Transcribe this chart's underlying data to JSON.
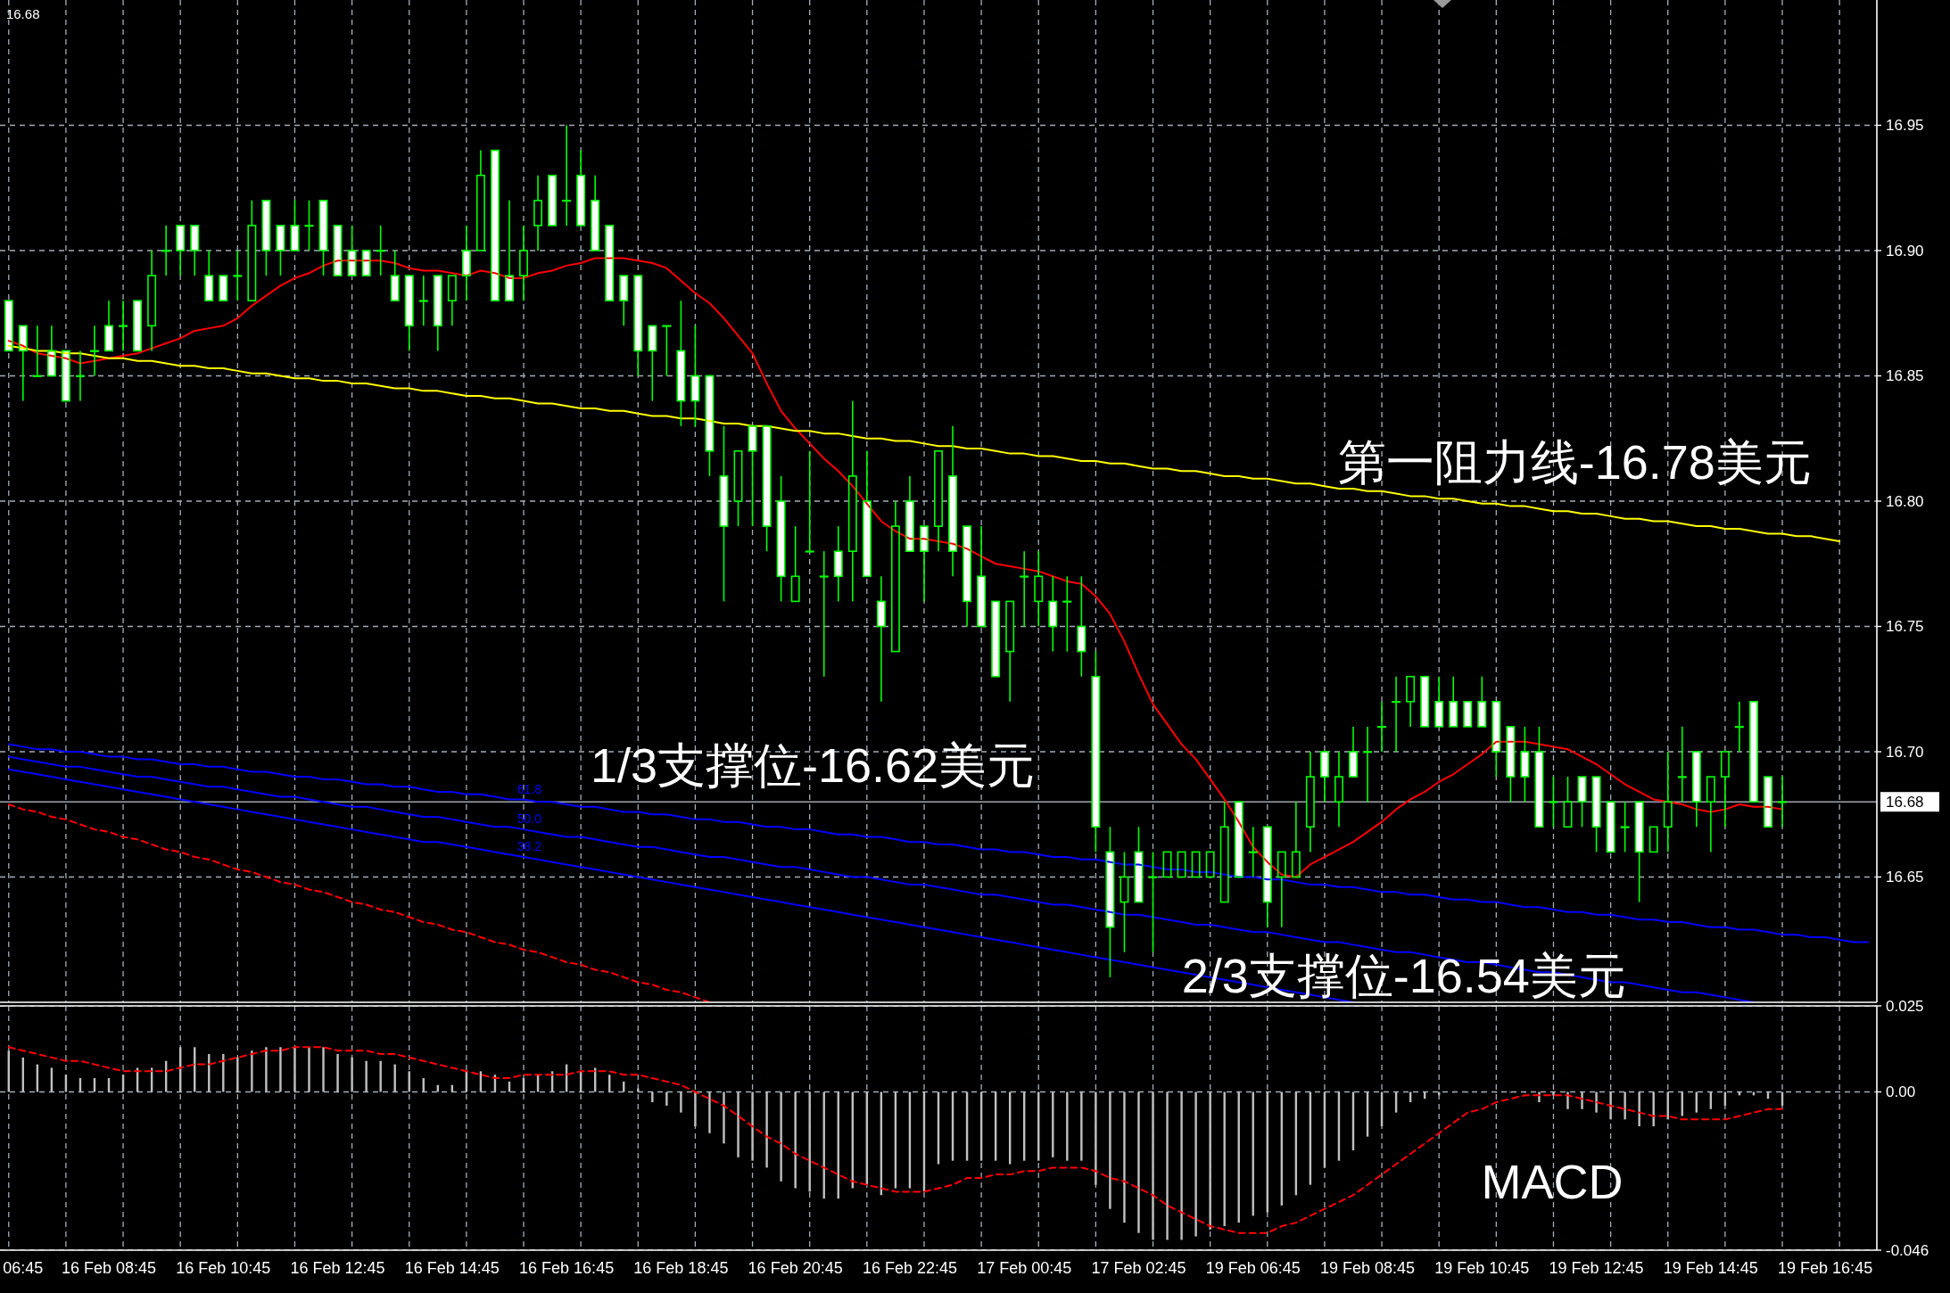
{
  "chart_data": [
    {
      "type": "candlestick",
      "annotations": [
        "16.68",
        "第一阻力线-16.78美元",
        "1/3支撑位-16.62美元",
        "2/3支撑位-16.54美元"
      ],
      "categories": [
        null,
        null,
        null,
        null,
        null,
        null,
        null,
        null,
        null,
        null,
        null,
        null,
        null,
        null,
        null,
        null,
        null,
        null,
        null,
        null,
        null,
        null,
        null,
        null,
        null,
        null,
        null,
        null,
        null,
        null,
        null,
        null,
        null,
        null,
        null,
        null,
        null,
        null,
        null,
        null,
        null,
        null,
        null,
        null,
        null,
        null,
        null,
        null,
        null,
        null,
        null,
        null,
        null,
        null,
        null,
        null,
        null,
        null,
        null,
        null,
        null,
        null,
        null,
        null,
        null,
        null,
        null,
        null,
        null,
        null,
        null,
        null,
        null,
        null,
        null,
        null,
        null,
        null,
        null,
        null,
        null,
        null,
        null,
        null,
        null,
        null,
        null,
        null,
        null,
        null,
        null,
        null,
        null,
        null,
        null,
        null,
        null,
        null,
        null,
        null,
        null,
        null,
        null,
        null,
        null,
        null,
        null,
        null,
        null,
        null,
        null,
        null,
        null,
        null,
        null,
        null,
        null,
        null,
        null,
        null,
        null,
        null,
        null,
        null,
        null,
        null,
        null,
        null,
        null,
        null,
        null
      ],
      "ohlc": [
        [
          16.88,
          16.88,
          16.86,
          16.86
        ],
        [
          16.87,
          16.87,
          16.84,
          16.86
        ],
        [
          16.85,
          16.87,
          16.85,
          16.85
        ],
        [
          16.86,
          16.87,
          16.85,
          16.85
        ],
        [
          16.86,
          16.86,
          16.84,
          16.84
        ],
        [
          16.85,
          16.86,
          16.84,
          16.85
        ],
        [
          16.86,
          16.87,
          16.85,
          16.86
        ],
        [
          16.87,
          16.88,
          16.86,
          16.86
        ],
        [
          16.87,
          16.88,
          16.86,
          16.87
        ],
        [
          16.88,
          16.88,
          16.86,
          16.86
        ],
        [
          16.87,
          16.9,
          16.86,
          16.89
        ],
        [
          16.9,
          16.91,
          16.89,
          16.9
        ],
        [
          16.91,
          16.91,
          16.89,
          16.9
        ],
        [
          16.91,
          16.91,
          16.89,
          16.9
        ],
        [
          16.89,
          16.9,
          16.88,
          16.88
        ],
        [
          16.89,
          16.89,
          16.88,
          16.88
        ],
        [
          16.89,
          16.9,
          16.88,
          16.89
        ],
        [
          16.88,
          16.92,
          16.88,
          16.91
        ],
        [
          16.92,
          16.92,
          16.89,
          16.9
        ],
        [
          16.91,
          16.91,
          16.89,
          16.9
        ],
        [
          16.91,
          16.92,
          16.9,
          16.9
        ],
        [
          16.91,
          16.92,
          16.9,
          16.91
        ],
        [
          16.92,
          16.92,
          16.89,
          16.9
        ],
        [
          16.91,
          16.91,
          16.89,
          16.89
        ],
        [
          16.9,
          16.91,
          16.89,
          16.89
        ],
        [
          16.9,
          16.9,
          16.89,
          16.89
        ],
        [
          16.9,
          16.91,
          16.89,
          16.9
        ],
        [
          16.89,
          16.9,
          16.88,
          16.88
        ],
        [
          16.89,
          16.89,
          16.86,
          16.87
        ],
        [
          16.88,
          16.89,
          16.87,
          16.88
        ],
        [
          16.89,
          16.89,
          16.86,
          16.87
        ],
        [
          16.88,
          16.89,
          16.87,
          16.89
        ],
        [
          16.9,
          16.91,
          16.88,
          16.89
        ],
        [
          16.9,
          16.94,
          16.9,
          16.93
        ],
        [
          16.94,
          16.94,
          16.88,
          16.88
        ],
        [
          16.89,
          16.92,
          16.88,
          16.88
        ],
        [
          16.89,
          16.91,
          16.88,
          16.9
        ],
        [
          16.91,
          16.93,
          16.9,
          16.92
        ],
        [
          16.93,
          16.93,
          16.91,
          16.91
        ],
        [
          16.92,
          16.95,
          16.91,
          16.92
        ],
        [
          16.93,
          16.94,
          16.91,
          16.91
        ],
        [
          16.92,
          16.93,
          16.9,
          16.9
        ],
        [
          16.91,
          16.91,
          16.88,
          16.88
        ],
        [
          16.89,
          16.89,
          16.87,
          16.88
        ],
        [
          16.89,
          16.89,
          16.85,
          16.86
        ],
        [
          16.87,
          16.87,
          16.84,
          16.86
        ],
        [
          16.87,
          16.87,
          16.85,
          16.87
        ],
        [
          16.86,
          16.88,
          16.83,
          16.84
        ],
        [
          16.85,
          16.87,
          16.83,
          16.84
        ],
        [
          16.85,
          16.85,
          16.81,
          16.82
        ],
        [
          16.81,
          16.83,
          16.76,
          16.79
        ],
        [
          16.8,
          16.82,
          16.79,
          16.82
        ],
        [
          16.83,
          16.83,
          16.79,
          16.82
        ],
        [
          16.83,
          16.83,
          16.78,
          16.79
        ],
        [
          16.8,
          16.81,
          16.76,
          16.77
        ],
        [
          16.76,
          16.79,
          16.76,
          16.77
        ],
        [
          16.78,
          16.82,
          16.78,
          16.78
        ],
        [
          16.77,
          16.78,
          16.73,
          16.77
        ],
        [
          16.78,
          16.79,
          16.76,
          16.77
        ],
        [
          16.78,
          16.84,
          16.76,
          16.81
        ],
        [
          16.8,
          16.82,
          16.77,
          16.77
        ],
        [
          16.76,
          16.77,
          16.72,
          16.75
        ],
        [
          16.74,
          16.8,
          16.74,
          16.79
        ],
        [
          16.8,
          16.81,
          16.78,
          16.78
        ],
        [
          16.79,
          16.79,
          16.76,
          16.78
        ],
        [
          16.79,
          16.82,
          16.78,
          16.82
        ],
        [
          16.81,
          16.83,
          16.77,
          16.78
        ],
        [
          16.79,
          16.79,
          16.75,
          16.76
        ],
        [
          16.77,
          16.79,
          16.75,
          16.75
        ],
        [
          16.76,
          16.76,
          16.73,
          16.73
        ],
        [
          16.74,
          16.76,
          16.72,
          16.76
        ],
        [
          16.77,
          16.78,
          16.75,
          16.77
        ],
        [
          16.76,
          16.78,
          16.75,
          16.77
        ],
        [
          16.76,
          16.77,
          16.74,
          16.75
        ],
        [
          16.76,
          16.77,
          16.74,
          16.76
        ],
        [
          16.75,
          16.77,
          16.73,
          16.74
        ],
        [
          16.73,
          16.74,
          16.66,
          16.67
        ],
        [
          16.66,
          16.67,
          16.61,
          16.63
        ],
        [
          16.64,
          16.66,
          16.62,
          16.65
        ],
        [
          16.66,
          16.67,
          16.64,
          16.64
        ],
        [
          16.65,
          16.66,
          16.62,
          16.65
        ],
        [
          16.65,
          16.66,
          16.65,
          16.66
        ],
        [
          16.65,
          16.66,
          16.65,
          16.66
        ],
        [
          16.65,
          16.66,
          16.65,
          16.66
        ],
        [
          16.65,
          16.66,
          16.65,
          16.66
        ],
        [
          16.64,
          16.68,
          16.64,
          16.67
        ],
        [
          16.68,
          16.68,
          16.65,
          16.65
        ],
        [
          16.66,
          16.67,
          16.65,
          16.66
        ],
        [
          16.67,
          16.67,
          16.63,
          16.64
        ],
        [
          16.65,
          16.66,
          16.63,
          16.66
        ],
        [
          16.65,
          16.68,
          16.65,
          16.66
        ],
        [
          16.67,
          16.7,
          16.66,
          16.69
        ],
        [
          16.7,
          16.7,
          16.68,
          16.69
        ],
        [
          16.68,
          16.7,
          16.67,
          16.69
        ],
        [
          16.7,
          16.71,
          16.69,
          16.69
        ],
        [
          16.7,
          16.71,
          16.68,
          16.7
        ],
        [
          16.71,
          16.72,
          16.7,
          16.71
        ],
        [
          16.72,
          16.73,
          16.7,
          16.72
        ],
        [
          16.72,
          16.73,
          16.71,
          16.73
        ],
        [
          16.73,
          16.73,
          16.71,
          16.71
        ],
        [
          16.72,
          16.73,
          16.71,
          16.71
        ],
        [
          16.72,
          16.73,
          16.71,
          16.71
        ],
        [
          16.72,
          16.72,
          16.71,
          16.71
        ],
        [
          16.72,
          16.73,
          16.71,
          16.71
        ],
        [
          16.72,
          16.72,
          16.69,
          16.7
        ],
        [
          16.71,
          16.71,
          16.68,
          16.69
        ],
        [
          16.7,
          16.71,
          16.68,
          16.69
        ],
        [
          16.7,
          16.71,
          16.67,
          16.67
        ],
        [
          16.68,
          16.69,
          16.67,
          16.68
        ],
        [
          16.67,
          16.69,
          16.67,
          16.68
        ],
        [
          16.69,
          16.69,
          16.67,
          16.68
        ],
        [
          16.69,
          16.69,
          16.66,
          16.67
        ],
        [
          16.68,
          16.68,
          16.66,
          16.66
        ],
        [
          16.67,
          16.68,
          16.66,
          16.67
        ],
        [
          16.68,
          16.68,
          16.64,
          16.66
        ],
        [
          16.66,
          16.67,
          16.66,
          16.67
        ],
        [
          16.67,
          16.7,
          16.66,
          16.68
        ],
        [
          16.69,
          16.71,
          16.68,
          16.69
        ],
        [
          16.7,
          16.7,
          16.67,
          16.68
        ],
        [
          16.68,
          16.69,
          16.66,
          16.69
        ],
        [
          16.69,
          16.7,
          16.67,
          16.7
        ],
        [
          16.71,
          16.72,
          16.7,
          16.71
        ],
        [
          16.72,
          16.72,
          16.68,
          16.68
        ],
        [
          16.69,
          16.69,
          16.67,
          16.67
        ],
        [
          16.68,
          16.69,
          16.67,
          16.68
        ],
        null,
        null,
        null,
        null,
        null,
        null
      ],
      "color": "#00ff00",
      "colors": [
        "#ffffff",
        "#ffffff",
        "#000000",
        "#ffffff",
        "#ffffff",
        "#000000",
        "#000000",
        "#ffffff",
        "#000000",
        "#ffffff",
        "#000000",
        "#000000",
        "#ffffff",
        "#ffffff",
        "#ffffff",
        "#ffffff",
        "#000000",
        "#000000",
        "#ffffff",
        "#ffffff",
        "#ffffff",
        "#000000",
        "#ffffff",
        "#ffffff",
        "#ffffff",
        "#ffffff",
        "#000000",
        "#ffffff",
        "#ffffff",
        "#000000",
        "#ffffff",
        "#000000",
        "#ffffff",
        "#000000",
        "#ffffff",
        "#ffffff",
        "#000000",
        "#000000",
        "#ffffff",
        "#000000",
        "#ffffff",
        "#ffffff",
        "#ffffff",
        "#ffffff",
        "#ffffff",
        "#ffffff",
        "#000000",
        "#ffffff",
        "#ffffff",
        "#ffffff",
        "#ffffff",
        "#000000",
        "#ffffff",
        "#ffffff",
        "#ffffff",
        "#000000",
        "#000000",
        "#000000",
        "#ffffff",
        "#000000",
        "#ffffff",
        "#ffffff",
        "#000000",
        "#ffffff",
        "#ffffff",
        "#000000",
        "#ffffff",
        "#ffffff",
        "#ffffff",
        "#ffffff",
        "#000000",
        "#000000",
        "#000000",
        "#ffffff",
        "#000000",
        "#ffffff",
        "#ffffff",
        "#ffffff",
        "#000000",
        "#ffffff",
        "#000000",
        "#000000",
        "#000000",
        "#000000",
        "#000000",
        "#000000",
        "#ffffff",
        "#000000",
        "#ffffff",
        "#000000",
        "#000000",
        "#000000",
        "#ffffff",
        "#000000",
        "#ffffff",
        "#000000",
        "#000000",
        "#000000",
        "#000000",
        "#ffffff",
        "#ffffff",
        "#ffffff",
        "#ffffff",
        "#ffffff",
        "#ffffff",
        "#ffffff",
        "#ffffff",
        "#ffffff",
        "#000000",
        "#000000",
        "#ffffff",
        "#ffffff",
        "#ffffff",
        "#000000",
        "#ffffff",
        "#000000",
        "#000000",
        "#000000",
        "#ffffff",
        "#000000",
        "#000000",
        "#000000",
        "#ffffff",
        "#ffffff",
        "#000000",
        null,
        null,
        null,
        null,
        null,
        null
      ],
      "series": [
        {
          "type": "line",
          "color": "#ff0000",
          "values": [
            16.864,
            16.862,
            16.859,
            16.858,
            16.857,
            16.855,
            16.856,
            16.857,
            16.858,
            16.859,
            16.861,
            16.863,
            16.865,
            16.868,
            16.869,
            16.87,
            16.873,
            16.878,
            16.882,
            16.886,
            16.889,
            16.891,
            16.894,
            16.896,
            16.896,
            16.896,
            16.896,
            16.895,
            16.893,
            16.892,
            16.892,
            16.891,
            16.89,
            16.892,
            16.891,
            16.889,
            16.889,
            16.891,
            16.892,
            16.894,
            16.895,
            16.897,
            16.897,
            16.897,
            16.896,
            16.895,
            16.893,
            16.888,
            16.883,
            16.879,
            16.873,
            16.866,
            16.859,
            16.847,
            16.836,
            16.829,
            16.823,
            16.817,
            16.812,
            16.806,
            16.799,
            16.792,
            16.788,
            16.785,
            16.785,
            16.784,
            16.783,
            16.781,
            16.778,
            16.775,
            16.774,
            16.773,
            16.772,
            16.77,
            16.768,
            16.767,
            16.762,
            16.755,
            16.744,
            16.731,
            16.719,
            16.711,
            16.703,
            16.697,
            16.689,
            16.681,
            16.672,
            16.662,
            16.656,
            16.651,
            16.65,
            16.655,
            16.658,
            16.661,
            16.664,
            16.668,
            16.672,
            16.677,
            16.681,
            16.684,
            16.688,
            16.691,
            16.695,
            16.699,
            16.704,
            16.704,
            16.704,
            16.703,
            16.702,
            16.701,
            16.698,
            16.695,
            16.691,
            16.687,
            16.684,
            16.681,
            16.68,
            16.679,
            16.677,
            16.676,
            16.677,
            16.679,
            16.678,
            16.678,
            16.677,
            null,
            null,
            null,
            null,
            null,
            null
          ]
        },
        {
          "type": "line",
          "color": "#ffff00",
          "values": [
            16.862,
            16.861,
            16.86,
            16.86,
            16.859,
            16.859,
            16.858,
            16.857,
            16.857,
            16.856,
            16.856,
            16.855,
            16.854,
            16.854,
            16.853,
            16.853,
            16.852,
            16.851,
            16.851,
            16.85,
            16.849,
            16.849,
            16.848,
            16.848,
            16.847,
            16.847,
            16.846,
            16.845,
            16.845,
            16.844,
            16.844,
            16.843,
            16.842,
            16.842,
            16.841,
            16.841,
            16.84,
            16.839,
            16.839,
            16.838,
            16.837,
            16.837,
            16.836,
            16.836,
            16.835,
            16.834,
            16.834,
            16.833,
            16.833,
            16.832,
            16.831,
            16.831,
            16.83,
            16.83,
            16.829,
            16.828,
            16.828,
            16.827,
            16.827,
            16.826,
            16.825,
            16.825,
            16.824,
            16.824,
            16.823,
            16.822,
            16.822,
            16.821,
            16.821,
            16.82,
            16.819,
            16.819,
            16.818,
            16.818,
            16.817,
            16.816,
            16.816,
            16.815,
            16.815,
            16.814,
            16.813,
            16.813,
            16.812,
            16.812,
            16.811,
            16.81,
            16.81,
            16.809,
            16.809,
            16.808,
            16.807,
            16.807,
            16.806,
            16.805,
            16.805,
            16.804,
            16.804,
            16.803,
            16.802,
            16.802,
            16.801,
            16.801,
            16.8,
            16.799,
            16.799,
            16.798,
            16.798,
            16.797,
            16.796,
            16.796,
            16.795,
            16.795,
            16.794,
            16.793,
            16.793,
            16.792,
            16.792,
            16.791,
            16.79,
            16.79,
            16.789,
            16.789,
            16.788,
            16.787,
            16.787,
            16.786,
            16.786,
            16.785,
            16.784,
            null,
            null
          ]
        },
        {
          "type": "line",
          "name": "61.8",
          "color": "#0000ff",
          "values": [
            16.703,
            16.702,
            16.701,
            16.701,
            16.7,
            16.7,
            16.699,
            16.698,
            16.698,
            16.697,
            16.697,
            16.696,
            16.695,
            16.695,
            16.694,
            16.694,
            16.693,
            16.692,
            16.692,
            16.691,
            16.69,
            16.69,
            16.689,
            16.689,
            16.688,
            16.687,
            16.687,
            16.686,
            16.686,
            16.685,
            16.684,
            16.684,
            16.683,
            16.683,
            16.682,
            16.681,
            16.681,
            16.68,
            16.68,
            16.679,
            16.678,
            16.678,
            16.677,
            16.676,
            16.676,
            16.675,
            16.675,
            16.674,
            16.673,
            16.673,
            16.672,
            16.672,
            16.671,
            16.67,
            16.67,
            16.669,
            16.669,
            16.668,
            16.667,
            16.667,
            16.666,
            16.666,
            16.665,
            16.664,
            16.664,
            16.663,
            16.663,
            16.662,
            16.661,
            16.661,
            16.66,
            16.66,
            16.659,
            16.658,
            16.658,
            16.657,
            16.657,
            16.656,
            16.655,
            16.655,
            16.654,
            16.653,
            16.653,
            16.652,
            16.652,
            16.651,
            16.65,
            16.65,
            16.649,
            16.649,
            16.648,
            16.647,
            16.647,
            16.646,
            16.646,
            16.645,
            16.644,
            16.644,
            16.643,
            16.643,
            16.642,
            16.641,
            16.641,
            16.64,
            16.64,
            16.639,
            16.638,
            16.638,
            16.637,
            16.636,
            16.636,
            16.635,
            16.635,
            16.634,
            16.633,
            16.633,
            16.632,
            16.632,
            16.631,
            16.63,
            16.63,
            16.629,
            16.629,
            16.628,
            16.627,
            16.627,
            16.626,
            16.626,
            16.625,
            16.624,
            16.624
          ]
        },
        {
          "type": "line",
          "name": "50.0",
          "color": "#0000ff",
          "values": [
            16.698,
            16.697,
            16.696,
            16.695,
            16.694,
            16.694,
            16.693,
            16.692,
            16.691,
            16.69,
            16.69,
            16.689,
            16.688,
            16.687,
            16.686,
            16.686,
            16.685,
            16.684,
            16.683,
            16.682,
            16.682,
            16.681,
            16.68,
            16.679,
            16.678,
            16.678,
            16.677,
            16.676,
            16.675,
            16.674,
            16.674,
            16.673,
            16.672,
            16.671,
            16.67,
            16.67,
            16.669,
            16.668,
            16.667,
            16.666,
            16.666,
            16.665,
            16.664,
            16.663,
            16.662,
            16.662,
            16.661,
            16.66,
            16.659,
            16.658,
            16.658,
            16.657,
            16.656,
            16.655,
            16.654,
            16.654,
            16.653,
            16.652,
            16.651,
            16.65,
            16.65,
            16.649,
            16.648,
            16.647,
            16.647,
            16.646,
            16.645,
            16.644,
            16.643,
            16.643,
            16.642,
            16.641,
            16.64,
            16.639,
            16.639,
            16.638,
            16.637,
            16.636,
            16.635,
            16.635,
            16.634,
            16.633,
            16.632,
            16.631,
            16.631,
            16.63,
            16.629,
            16.628,
            16.628,
            16.627,
            16.626,
            16.625,
            16.624,
            16.624,
            16.623,
            16.622,
            16.621,
            16.62,
            16.62,
            16.619,
            16.618,
            16.617,
            16.616,
            16.616,
            16.615,
            16.614,
            16.613,
            16.612,
            16.612,
            16.611,
            16.61,
            16.609,
            16.608,
            16.608,
            16.607,
            16.606,
            16.605,
            16.604,
            16.604,
            16.603,
            16.602,
            16.601,
            16.6,
            null,
            null,
            null,
            null,
            null,
            null,
            null,
            null
          ]
        },
        {
          "type": "line",
          "name": "38.2",
          "color": "#0000ff",
          "values": [
            16.693,
            16.692,
            16.691,
            16.69,
            16.689,
            16.688,
            16.687,
            16.686,
            16.685,
            16.684,
            16.683,
            16.682,
            16.681,
            16.68,
            16.679,
            16.678,
            16.677,
            16.676,
            16.675,
            16.674,
            16.673,
            16.672,
            16.671,
            16.67,
            16.669,
            16.668,
            16.667,
            16.666,
            16.665,
            16.664,
            16.664,
            16.663,
            16.662,
            16.661,
            16.66,
            16.659,
            16.658,
            16.657,
            16.656,
            16.655,
            16.654,
            16.653,
            16.652,
            16.651,
            16.65,
            16.649,
            16.648,
            16.647,
            16.646,
            16.645,
            16.644,
            16.643,
            16.642,
            16.641,
            16.64,
            16.639,
            16.638,
            16.637,
            16.636,
            16.635,
            16.634,
            16.633,
            16.632,
            16.631,
            16.63,
            16.629,
            16.628,
            16.627,
            16.626,
            16.625,
            16.624,
            16.623,
            16.622,
            16.621,
            16.62,
            16.619,
            16.618,
            16.617,
            16.616,
            16.615,
            16.614,
            16.613,
            16.612,
            16.611,
            16.61,
            16.609,
            16.608,
            16.607,
            16.606,
            16.605,
            16.604,
            16.603,
            16.602,
            16.601,
            16.6,
            null,
            null,
            null,
            null,
            null,
            null,
            null,
            null,
            null,
            null,
            null,
            null,
            null,
            null,
            null,
            null,
            null,
            null,
            null,
            null,
            null,
            null,
            null,
            null,
            null,
            null,
            null,
            null,
            null,
            null,
            null,
            null,
            null,
            null,
            null,
            null
          ]
        },
        {
          "type": "line",
          "color": "#ff0000",
          "line_style": "dashed",
          "values": [
            16.679,
            16.677,
            16.676,
            16.674,
            16.673,
            16.671,
            16.669,
            16.668,
            16.666,
            16.665,
            16.663,
            16.661,
            16.66,
            16.658,
            16.657,
            16.655,
            16.653,
            16.652,
            16.65,
            16.648,
            16.647,
            16.645,
            16.644,
            16.642,
            16.64,
            16.639,
            16.637,
            16.636,
            16.634,
            16.632,
            16.631,
            16.629,
            16.628,
            16.626,
            16.624,
            16.623,
            16.621,
            16.62,
            16.618,
            16.616,
            16.615,
            16.613,
            16.612,
            16.61,
            16.608,
            16.607,
            16.605,
            16.604,
            16.602,
            16.6,
            null,
            null,
            null,
            null,
            null,
            null,
            null,
            null,
            null,
            null,
            null,
            null,
            null,
            null,
            null,
            null,
            null,
            null,
            null,
            null,
            null,
            null,
            null,
            null,
            null,
            null,
            null,
            null,
            null,
            null,
            null,
            null,
            null,
            null,
            null,
            null,
            null,
            null,
            null,
            null,
            null,
            null,
            null,
            null,
            null,
            null,
            null,
            null,
            null,
            null,
            null,
            null,
            null,
            null,
            null,
            null,
            null,
            null,
            null,
            null,
            null,
            null,
            null,
            null,
            null,
            null,
            null,
            null,
            null,
            null,
            null,
            null,
            null,
            null,
            null,
            null,
            null,
            null,
            null,
            null,
            null
          ]
        }
      ],
      "ylim": [
        16.6,
        17.0
      ],
      "yticks": [
        16.65,
        {
          "value": 16.7,
          "label": "16.70"
        },
        16.75,
        {
          "value": 16.8,
          "label": "16.80"
        },
        16.85,
        {
          "value": 16.9,
          "label": "16.90"
        },
        16.95
      ],
      "ref_lines": [
        {
          "axis": "y",
          "value": 16.68,
          "label": "16.68",
          "color": "#a0a8b0"
        }
      ],
      "grid": true
    },
    {
      "type": "bar",
      "title": "MACD",
      "categories": [
        null,
        "06:45",
        null,
        null,
        null,
        null,
        null,
        "16 Feb 08:45",
        null,
        null,
        null,
        null,
        null,
        null,
        null,
        "16 Feb 10:45",
        null,
        null,
        null,
        null,
        null,
        null,
        null,
        "16 Feb 12:45",
        null,
        null,
        null,
        null,
        null,
        null,
        null,
        "16 Feb 14:45",
        null,
        null,
        null,
        null,
        null,
        null,
        null,
        "16 Feb 16:45",
        null,
        null,
        null,
        null,
        null,
        null,
        null,
        "16 Feb 18:45",
        null,
        null,
        null,
        null,
        null,
        null,
        null,
        "16 Feb 20:45",
        null,
        null,
        null,
        null,
        null,
        null,
        null,
        "16 Feb 22:45",
        null,
        null,
        null,
        null,
        null,
        null,
        null,
        "17 Feb 00:45",
        null,
        null,
        null,
        null,
        null,
        null,
        null,
        "17 Feb 02:45",
        null,
        null,
        null,
        null,
        null,
        null,
        null,
        "19 Feb 06:45",
        null,
        null,
        null,
        null,
        null,
        null,
        null,
        "19 Feb 08:45",
        null,
        null,
        null,
        null,
        null,
        null,
        null,
        "19 Feb 10:45",
        null,
        null,
        null,
        null,
        null,
        null,
        null,
        "19 Feb 12:45",
        null,
        null,
        null,
        null,
        null,
        null,
        null,
        "19 Feb 14:45",
        null,
        null,
        null,
        null,
        null,
        null,
        null,
        "19 Feb 16:45",
        null,
        null,
        null
      ],
      "series": [
        {
          "color": "#c0c0c0",
          "values": [
            0.012,
            0.01,
            0.008,
            0.007,
            0.005,
            0.004,
            0.004,
            0.004,
            0.005,
            0.007,
            0.007,
            0.009,
            0.013,
            0.013,
            0.011,
            0.011,
            0.01,
            0.012,
            0.013,
            0.013,
            0.013,
            0.013,
            0.013,
            0.011,
            0.01,
            0.009,
            0.009,
            0.008,
            0.006,
            0.004,
            0.002,
            0.002,
            0.006,
            0.006,
            0.005,
            0.003,
            0.004,
            0.005,
            0.006,
            0.008,
            0.006,
            0.007,
            0.005,
            0.003,
            0.001,
            -0.003,
            -0.004,
            -0.006,
            -0.01,
            -0.012,
            -0.015,
            -0.019,
            -0.02,
            -0.022,
            -0.026,
            -0.028,
            -0.029,
            -0.031,
            -0.031,
            -0.028,
            -0.027,
            -0.03,
            -0.028,
            -0.028,
            -0.029,
            -0.021,
            -0.02,
            -0.02,
            -0.02,
            -0.02,
            -0.021,
            -0.02,
            -0.02,
            -0.019,
            -0.02,
            -0.02,
            -0.027,
            -0.034,
            -0.038,
            -0.041,
            -0.043,
            -0.043,
            -0.043,
            -0.042,
            -0.04,
            -0.039,
            -0.038,
            -0.036,
            -0.035,
            -0.033,
            -0.03,
            -0.027,
            -0.022,
            -0.02,
            -0.017,
            -0.013,
            -0.01,
            -0.006,
            -0.003,
            -0.002,
            -0.001,
            0.0,
            0.0,
            0.0,
            0.0,
            0.0,
            0.0,
            -0.003,
            -0.001,
            -0.005,
            -0.005,
            -0.006,
            -0.008,
            -0.008,
            -0.01,
            -0.01,
            -0.008,
            -0.007,
            -0.006,
            -0.005,
            -0.004,
            -0.001,
            -0.001,
            -0.002,
            -0.004,
            null,
            null,
            null,
            null,
            null,
            null
          ]
        },
        {
          "type": "line",
          "color": "#ff0000",
          "line_style": "dashed",
          "values": [
            0.013,
            0.012,
            0.011,
            0.01,
            0.009,
            0.009,
            0.008,
            0.007,
            0.006,
            0.006,
            0.006,
            0.006,
            0.007,
            0.008,
            0.008,
            0.009,
            0.01,
            0.011,
            0.012,
            0.012,
            0.013,
            0.013,
            0.013,
            0.012,
            0.012,
            0.012,
            0.011,
            0.011,
            0.01,
            0.009,
            0.008,
            0.007,
            0.006,
            0.005,
            0.004,
            0.004,
            0.005,
            0.005,
            0.005,
            0.005,
            0.006,
            0.006,
            0.006,
            0.005,
            0.005,
            0.004,
            0.003,
            0.002,
            0.0,
            -0.002,
            -0.004,
            -0.007,
            -0.01,
            -0.013,
            -0.015,
            -0.018,
            -0.02,
            -0.022,
            -0.024,
            -0.026,
            -0.027,
            -0.028,
            -0.029,
            -0.029,
            -0.029,
            -0.028,
            -0.027,
            -0.025,
            -0.025,
            -0.024,
            -0.024,
            -0.023,
            -0.023,
            -0.022,
            -0.022,
            -0.022,
            -0.023,
            -0.025,
            -0.026,
            -0.028,
            -0.03,
            -0.033,
            -0.035,
            -0.037,
            -0.039,
            -0.04,
            -0.041,
            -0.041,
            -0.041,
            -0.039,
            -0.038,
            -0.036,
            -0.034,
            -0.032,
            -0.03,
            -0.027,
            -0.024,
            -0.021,
            -0.018,
            -0.015,
            -0.012,
            -0.009,
            -0.006,
            -0.005,
            -0.003,
            -0.002,
            -0.001,
            -0.001,
            -0.001,
            -0.001,
            -0.002,
            -0.003,
            -0.004,
            -0.005,
            -0.006,
            -0.007,
            -0.007,
            -0.008,
            -0.008,
            -0.008,
            -0.008,
            -0.007,
            -0.006,
            -0.005,
            -0.005,
            null,
            null,
            null,
            null,
            null,
            null
          ]
        }
      ],
      "ylim": [
        -0.046,
        0.025
      ],
      "yticks": [
        -0.046,
        {
          "value": 0,
          "label": "0.00"
        },
        0.025
      ],
      "grid": true
    }
  ]
}
